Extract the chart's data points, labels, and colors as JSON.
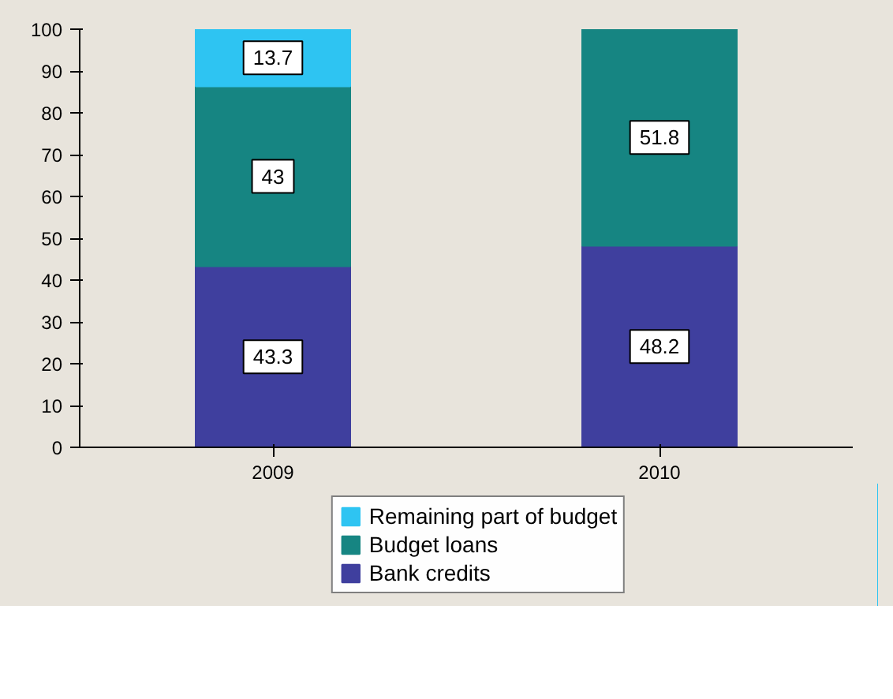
{
  "chart_data": {
    "type": "bar",
    "stacked": true,
    "categories": [
      "2009",
      "2010"
    ],
    "series": [
      {
        "name": "Bank credits",
        "color": "#3f3f9e",
        "values": [
          43.3,
          48.2
        ]
      },
      {
        "name": "Budget loans",
        "color": "#168582",
        "values": [
          43,
          51.8
        ]
      },
      {
        "name": "Remaining part of budget",
        "color": "#2ec4f2",
        "values": [
          13.7,
          null
        ]
      }
    ],
    "ylim": [
      0,
      100
    ],
    "yticks": [
      0,
      10,
      20,
      30,
      40,
      50,
      60,
      70,
      80,
      90,
      100
    ],
    "grid": false,
    "legend": "bottom",
    "data_labels": true
  }
}
